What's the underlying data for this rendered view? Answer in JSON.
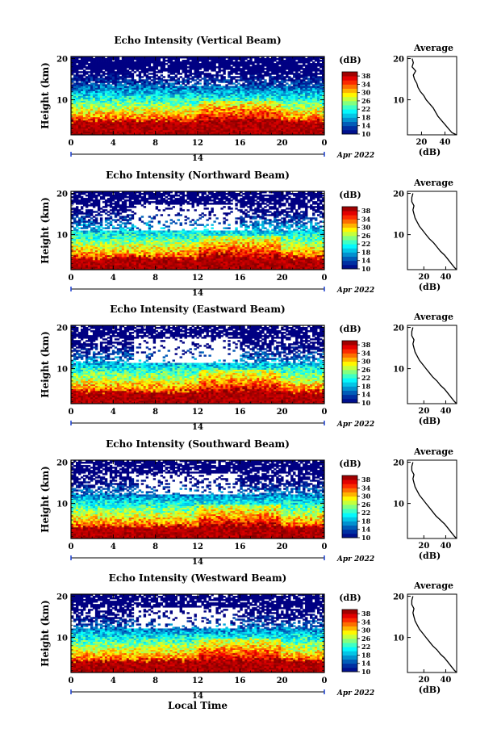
{
  "chart_data": [
    {
      "type": "heatmap",
      "title": "Echo Intensity (Vertical Beam)",
      "ylabel": "Height (km)",
      "xlabel": "",
      "x_ticks": [
        "0",
        "4",
        "8",
        "12",
        "16",
        "20",
        "0"
      ],
      "y_ticks": [
        "10",
        "20"
      ],
      "xlim": [
        0,
        24
      ],
      "ylim": [
        1.5,
        20.5
      ],
      "date_day": "14",
      "date_month_year": "Apr 2022",
      "colorbar": {
        "label": "(dB)",
        "ticks": [
          "10",
          "14",
          "18",
          "22",
          "26",
          "30",
          "34",
          "38"
        ],
        "range": [
          10,
          40
        ]
      },
      "profile": {
        "title": "Average",
        "xlabel": "(dB)",
        "x_ticks": [
          "20",
          "40"
        ],
        "xlim": [
          8,
          50
        ],
        "height_km": [
          1.5,
          2,
          3,
          4,
          5,
          6,
          7,
          8,
          9,
          10,
          11,
          12,
          13,
          14,
          15,
          16,
          17,
          18,
          19,
          20
        ],
        "db": [
          50,
          46,
          43,
          40,
          37,
          34,
          32,
          30,
          27,
          24,
          22,
          19,
          17,
          16,
          14,
          13,
          15,
          12,
          13,
          12
        ]
      },
      "structure": {
        "strong_top_km": 5.0,
        "gap_band_km": [
          13.5,
          17.5
        ],
        "gap_fraction": 0.35
      }
    },
    {
      "type": "heatmap",
      "title": "Echo Intensity (Northward Beam)",
      "ylabel": "Height (km)",
      "xlabel": "",
      "x_ticks": [
        "0",
        "4",
        "8",
        "12",
        "16",
        "20",
        "0"
      ],
      "y_ticks": [
        "10",
        "20"
      ],
      "xlim": [
        0,
        24
      ],
      "ylim": [
        1.5,
        20.5
      ],
      "date_day": "14",
      "date_month_year": "Apr 2022",
      "colorbar": {
        "label": "(dB)",
        "ticks": [
          "10",
          "14",
          "18",
          "22",
          "26",
          "30",
          "34",
          "38"
        ],
        "range": [
          10,
          40
        ]
      },
      "profile": {
        "title": "Average",
        "xlabel": "(dB)",
        "x_ticks": [
          "20",
          "40"
        ],
        "xlim": [
          5,
          50
        ],
        "height_km": [
          1.5,
          2,
          3,
          4,
          5,
          6,
          7,
          8,
          9,
          10,
          11,
          12,
          13,
          14,
          15,
          16,
          17,
          18,
          19,
          20
        ],
        "db": [
          50,
          48,
          45,
          42,
          39,
          35,
          32,
          29,
          25,
          22,
          19,
          16,
          14,
          12,
          11,
          10,
          11,
          9,
          9,
          10
        ]
      },
      "structure": {
        "strong_top_km": 4.5,
        "gap_band_km": [
          11.0,
          17.5
        ],
        "gap_fraction": 0.8
      }
    },
    {
      "type": "heatmap",
      "title": "Echo Intensity (Eastward Beam)",
      "ylabel": "Height (km)",
      "xlabel": "",
      "x_ticks": [
        "0",
        "4",
        "8",
        "12",
        "16",
        "20",
        "0"
      ],
      "y_ticks": [
        "10",
        "20"
      ],
      "xlim": [
        0,
        24
      ],
      "ylim": [
        1.5,
        20.5
      ],
      "date_day": "14",
      "date_month_year": "Apr 2022",
      "colorbar": {
        "label": "(dB)",
        "ticks": [
          "10",
          "14",
          "18",
          "22",
          "26",
          "30",
          "34",
          "38"
        ],
        "range": [
          10,
          40
        ]
      },
      "profile": {
        "title": "Average",
        "xlabel": "(dB)",
        "x_ticks": [
          "20",
          "40"
        ],
        "xlim": [
          5,
          50
        ],
        "height_km": [
          1.5,
          2,
          3,
          4,
          5,
          6,
          7,
          8,
          9,
          10,
          11,
          12,
          13,
          14,
          15,
          16,
          17,
          18,
          19,
          20
        ],
        "db": [
          50,
          48,
          45,
          42,
          39,
          35,
          32,
          28,
          25,
          22,
          19,
          16,
          14,
          12,
          11,
          10,
          11,
          9,
          9,
          10
        ]
      },
      "structure": {
        "strong_top_km": 4.5,
        "gap_band_km": [
          11.5,
          17.5
        ],
        "gap_fraction": 0.85
      }
    },
    {
      "type": "heatmap",
      "title": "Echo Intensity (Southward Beam)",
      "ylabel": "Height (km)",
      "xlabel": "",
      "x_ticks": [
        "0",
        "4",
        "8",
        "12",
        "16",
        "20",
        "0"
      ],
      "y_ticks": [
        "10",
        "20"
      ],
      "xlim": [
        0,
        24
      ],
      "ylim": [
        1.5,
        20.5
      ],
      "date_day": "14",
      "date_month_year": "Apr 2022",
      "colorbar": {
        "label": "(dB)",
        "ticks": [
          "10",
          "14",
          "18",
          "22",
          "26",
          "30",
          "34",
          "38"
        ],
        "range": [
          10,
          40
        ]
      },
      "profile": {
        "title": "Average",
        "xlabel": "(dB)",
        "x_ticks": [
          "20",
          "40"
        ],
        "xlim": [
          5,
          50
        ],
        "height_km": [
          1.5,
          2,
          3,
          4,
          5,
          6,
          7,
          8,
          9,
          10,
          11,
          12,
          13,
          14,
          15,
          16,
          17,
          18,
          19,
          20
        ],
        "db": [
          50,
          48,
          45,
          42,
          39,
          35,
          31,
          28,
          25,
          22,
          19,
          16,
          14,
          12,
          11,
          10,
          11,
          9,
          9,
          10
        ]
      },
      "structure": {
        "strong_top_km": 4.5,
        "gap_band_km": [
          12.0,
          17.5
        ],
        "gap_fraction": 0.75
      }
    },
    {
      "type": "heatmap",
      "title": "Echo Intensity (Westward Beam)",
      "ylabel": "Height (km)",
      "xlabel": "Local Time",
      "x_ticks": [
        "0",
        "4",
        "8",
        "12",
        "16",
        "20",
        "0"
      ],
      "y_ticks": [
        "10",
        "20"
      ],
      "xlim": [
        0,
        24
      ],
      "ylim": [
        1.5,
        20.5
      ],
      "date_day": "14",
      "date_month_year": "Apr 2022",
      "colorbar": {
        "label": "(dB)",
        "ticks": [
          "10",
          "14",
          "18",
          "22",
          "26",
          "30",
          "34",
          "38"
        ],
        "range": [
          10,
          40
        ]
      },
      "profile": {
        "title": "Average",
        "xlabel": "(dB)",
        "x_ticks": [
          "20",
          "40"
        ],
        "xlim": [
          5,
          50
        ],
        "height_km": [
          1.5,
          2,
          3,
          4,
          5,
          6,
          7,
          8,
          9,
          10,
          11,
          12,
          13,
          14,
          15,
          16,
          17,
          18,
          19,
          20
        ],
        "db": [
          50,
          48,
          45,
          42,
          39,
          35,
          32,
          28,
          25,
          22,
          19,
          16,
          14,
          12,
          11,
          10,
          11,
          9,
          9,
          10
        ]
      },
      "structure": {
        "strong_top_km": 4.5,
        "gap_band_km": [
          12.0,
          17.5
        ],
        "gap_fraction": 0.8
      }
    }
  ]
}
